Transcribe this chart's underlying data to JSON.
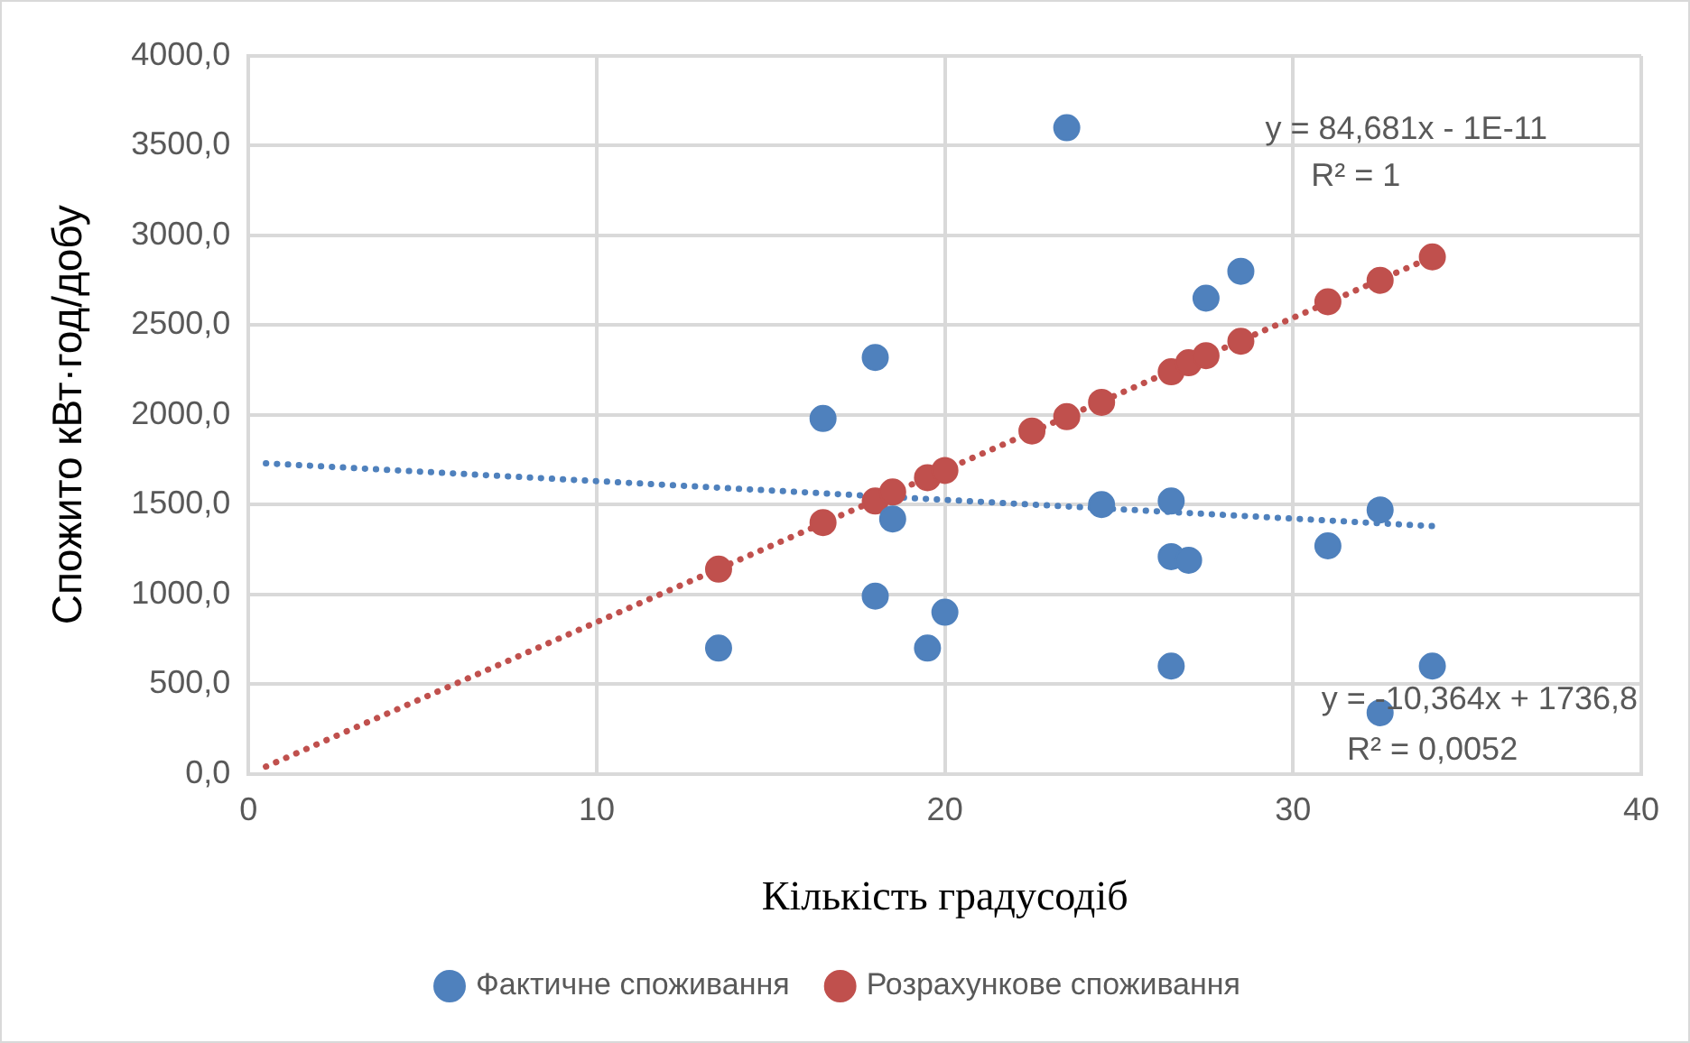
{
  "chart_data": {
    "type": "scatter",
    "xlabel": "Кількість градусодіб",
    "ylabel": "Спожито кВт·год/добу",
    "xlim": [
      0,
      40
    ],
    "xticks": [
      0,
      10,
      20,
      30,
      40
    ],
    "ylim": [
      0,
      4000
    ],
    "yticks": [
      {
        "value": 0,
        "label": "0,0"
      },
      {
        "value": 500,
        "label": "500,0"
      },
      {
        "value": 1000,
        "label": "1000,0"
      },
      {
        "value": 1500,
        "label": "1500,0"
      },
      {
        "value": 2000,
        "label": "2000,0"
      },
      {
        "value": 2500,
        "label": "2500,0"
      },
      {
        "value": 3000,
        "label": "3000,0"
      },
      {
        "value": 3500,
        "label": "3500,0"
      },
      {
        "value": 4000,
        "label": "4000,0"
      }
    ],
    "grid": true,
    "legend": "bottom",
    "annotations": [
      "y = 84,681x - 1E-11",
      "R² = 1",
      "y = -10,364x + 1736,8",
      "R² = 0,0052"
    ],
    "series": [
      {
        "name": "Фактичне споживання",
        "color": "#4f81bd",
        "marker": "circle",
        "x": [
          13.5,
          16.5,
          18,
          18,
          18.5,
          19.5,
          20,
          23.5,
          24.5,
          26.5,
          26.5,
          26.5,
          27,
          27.5,
          28.5,
          31,
          32.5,
          32.5,
          34
        ],
        "values": [
          700,
          1980,
          2320,
          990,
          1420,
          700,
          900,
          3600,
          1500,
          1520,
          1210,
          600,
          1190,
          2650,
          2800,
          1270,
          1470,
          340,
          600
        ]
      },
      {
        "name": "Розрахункове споживання",
        "color": "#c0504d",
        "marker": "circle",
        "x": [
          13.5,
          16.5,
          18,
          18.5,
          19.5,
          20,
          22.5,
          23.5,
          24.5,
          26.5,
          27,
          27.5,
          28.5,
          31,
          32.5,
          34
        ],
        "values": [
          1140,
          1400,
          1520,
          1570,
          1650,
          1690,
          1910,
          1990,
          2070,
          2240,
          2290,
          2330,
          2410,
          2630,
          2750,
          2880
        ]
      },
      {
        "type": "line",
        "color": "#4f81bd",
        "marker": "none",
        "line_style": "dotted",
        "x": [
          0.5,
          34
        ],
        "values": [
          1730,
          1380
        ]
      },
      {
        "type": "line",
        "color": "#c0504d",
        "marker": "none",
        "line_style": "dotted",
        "x": [
          0.5,
          34
        ],
        "values": [
          40,
          2880
        ]
      }
    ]
  }
}
